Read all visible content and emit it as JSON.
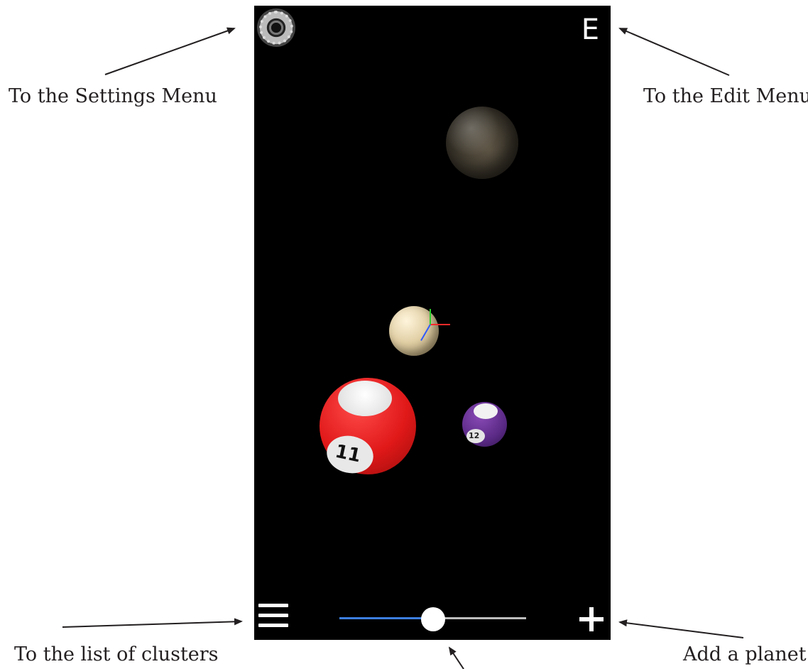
{
  "annotations": {
    "settings": "To the Settings Menu",
    "edit": "To the Edit Menu",
    "clusters": "To the list of clusters",
    "add": "Add a planet."
  },
  "app": {
    "edit_label": "E",
    "settings_icon": "settings-dial-icon",
    "menu_icon": "hamburger-menu-icon",
    "add_icon": "plus-icon",
    "speed_slider_value": 0.5,
    "slider_fill_color": "#3d7fe0",
    "slider_track_color": "#bdbdbd"
  },
  "scene": {
    "ball_11_number": "11",
    "ball_12_number": "12"
  }
}
